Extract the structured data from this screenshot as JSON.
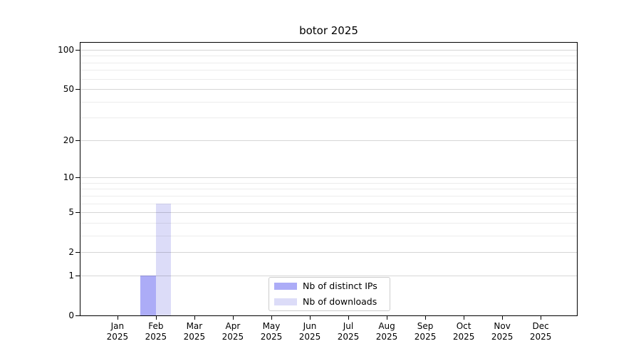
{
  "chart_data": {
    "type": "bar",
    "title": "botor 2025",
    "categories": [
      "Jan",
      "Feb",
      "Mar",
      "Apr",
      "May",
      "Jun",
      "Jul",
      "Aug",
      "Sep",
      "Oct",
      "Nov",
      "Dec"
    ],
    "category_year": "2025",
    "series": [
      {
        "name": "Nb of distinct IPs",
        "color": "#acacf7",
        "values": [
          0,
          1,
          0,
          0,
          0,
          0,
          0,
          0,
          0,
          0,
          0,
          0
        ]
      },
      {
        "name": "Nb of downloads",
        "color": "#dcdcf8",
        "values": [
          0,
          6,
          0,
          0,
          0,
          0,
          0,
          0,
          0,
          0,
          0,
          0
        ]
      }
    ],
    "y_axis": {
      "scale": "log1p",
      "major_ticks": [
        0,
        1,
        2,
        5,
        10,
        20,
        50,
        100
      ],
      "minor_ticks": [
        3,
        4,
        6,
        7,
        8,
        9,
        30,
        40,
        60,
        70,
        80,
        90
      ],
      "ymax": 113
    },
    "legend": {
      "position": "lower-center",
      "entries": [
        "Nb of distinct IPs",
        "Nb of downloads"
      ]
    },
    "grid": {
      "major_color": "rgba(0,0,0,0.16)",
      "minor_color": "rgba(0,0,0,0.075)"
    },
    "colors": {
      "spine": "#000000",
      "background": "#ffffff",
      "text": "#000000"
    }
  }
}
